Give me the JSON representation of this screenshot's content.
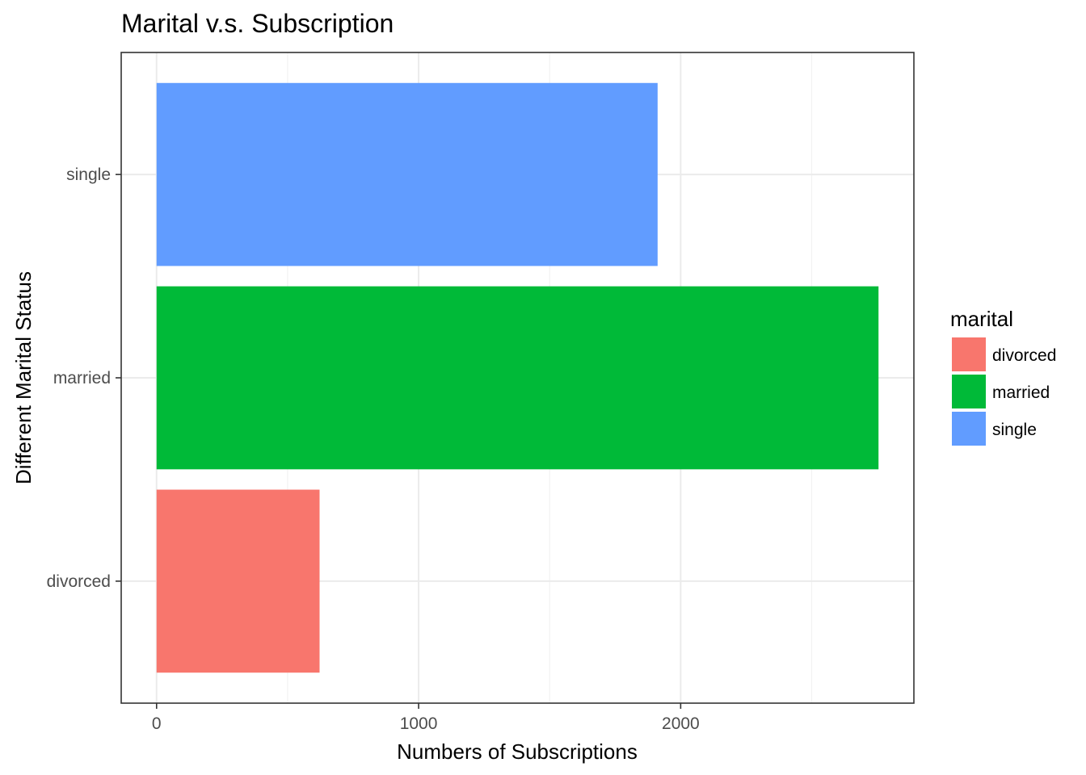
{
  "chart_data": {
    "type": "bar",
    "orientation": "horizontal",
    "title": "Marital v.s. Subscription",
    "xlabel": "Numbers of Subscriptions",
    "ylabel": "Different Marital Status",
    "categories": [
      "divorced",
      "married",
      "single"
    ],
    "values": [
      622,
      2755,
      1912
    ],
    "colors": {
      "divorced": "#F8766D",
      "married": "#00BA38",
      "single": "#619CFF"
    },
    "x_ticks": [
      0,
      1000,
      2000
    ],
    "x_tick_labels": [
      "0",
      "1000",
      "2000"
    ],
    "xlim": [
      -135,
      2890
    ],
    "grid": true,
    "legend": {
      "title": "marital",
      "position": "right",
      "entries": [
        "divorced",
        "married",
        "single"
      ]
    }
  }
}
